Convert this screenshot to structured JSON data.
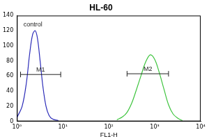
{
  "chart_data": {
    "type": "line",
    "title": "HL-60",
    "x_label": "FL1-H",
    "log": "x",
    "grid": false,
    "xlim": [
      1,
      10000
    ],
    "xticks": [
      {
        "value": 1,
        "label": "10⁰"
      },
      {
        "value": 10,
        "label": "10¹"
      },
      {
        "value": 100,
        "label": "10²"
      },
      {
        "value": 1000,
        "label": "10³"
      },
      {
        "value": 10000,
        "label": "10⁴"
      }
    ],
    "ylim": [
      0,
      140
    ],
    "yticks": [
      0,
      20,
      40,
      60,
      80,
      100,
      120,
      140
    ],
    "series": [
      {
        "color": "#2b2bb8",
        "x": [
          1,
          1.3,
          1.6,
          1.9,
          2.2,
          2.5,
          2.8,
          3.2,
          3.7,
          4.3,
          5,
          6,
          8
        ],
        "values": [
          5,
          20,
          50,
          90,
          115,
          120,
          110,
          80,
          45,
          20,
          8,
          3,
          1
        ]
      },
      {
        "color": "#3ec43e",
        "x": [
          150,
          200,
          250,
          320,
          400,
          500,
          630,
          800,
          1000,
          1250,
          1600,
          2000,
          2500,
          3200,
          4000
        ],
        "values": [
          2,
          6,
          12,
          25,
          42,
          60,
          78,
          88,
          82,
          65,
          42,
          22,
          10,
          4,
          1
        ]
      }
    ],
    "gates": [
      {
        "label": "M1",
        "range": [
          1.2,
          9
        ],
        "y": 62,
        "color": "#2b2bb8"
      },
      {
        "label": "M2",
        "range": [
          250,
          2000
        ],
        "y": 63,
        "color": "#3ec43e"
      }
    ],
    "annotations": [
      {
        "text": "control",
        "x": 1.3,
        "y": 128
      }
    ]
  }
}
